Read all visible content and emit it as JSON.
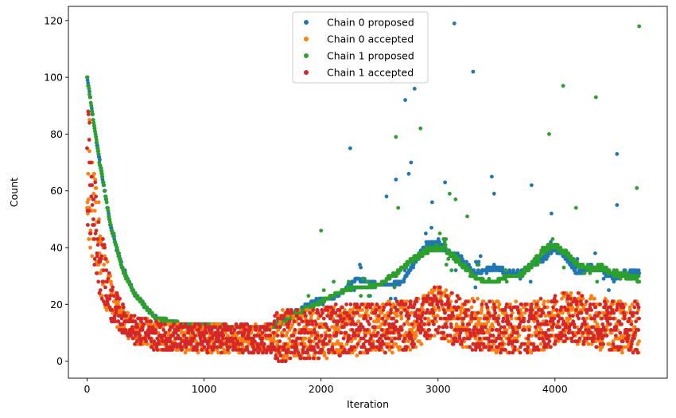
{
  "chart_data": {
    "type": "scatter",
    "title": "",
    "xlabel": "Iteration",
    "ylabel": "Count",
    "xlim": [
      -160,
      4960
    ],
    "ylim": [
      -6,
      125
    ],
    "x_ticks": [
      0,
      1000,
      2000,
      3000,
      4000
    ],
    "x_tick_labels": [
      "0",
      "1000",
      "2000",
      "3000",
      "4000"
    ],
    "y_ticks": [
      0,
      20,
      40,
      60,
      80,
      100,
      120
    ],
    "y_tick_labels": [
      "0",
      "20",
      "40",
      "60",
      "80",
      "100",
      "120"
    ],
    "grid": false,
    "legend_position": "upper center",
    "x_range": [
      0,
      4720
    ],
    "series": [
      {
        "name": "Chain 0 proposed",
        "color": "#1f77b4",
        "approx_trend": {
          "x": [
            0,
            100,
            200,
            300,
            400,
            500,
            600,
            800,
            1000,
            1200,
            1500,
            1600,
            1700,
            1800,
            1900,
            2000,
            2100,
            2200,
            2300,
            2400,
            2500,
            2600,
            2700,
            2800,
            2900,
            3000,
            3100,
            3200,
            3300,
            3400,
            3500,
            3600,
            3700,
            3800,
            3900,
            4000,
            4100,
            4200,
            4300,
            4400,
            4500,
            4600,
            4720
          ],
          "y": [
            100,
            72,
            48,
            33,
            24,
            19,
            15,
            13,
            13,
            12,
            12,
            13,
            15,
            18,
            20,
            22,
            22,
            25,
            29,
            28,
            27,
            27,
            28,
            35,
            41,
            42,
            38,
            36,
            31,
            32,
            33,
            31,
            31,
            34,
            36,
            40,
            36,
            31,
            33,
            32,
            29,
            31,
            31
          ]
        },
        "outliers": [
          [
            2250,
            75
          ],
          [
            2560,
            58
          ],
          [
            2640,
            64
          ],
          [
            2720,
            92
          ],
          [
            2750,
            66
          ],
          [
            2770,
            70
          ],
          [
            2800,
            96
          ],
          [
            2950,
            56
          ],
          [
            3060,
            63
          ],
          [
            3140,
            119
          ],
          [
            3300,
            102
          ],
          [
            3460,
            65
          ],
          [
            3480,
            59
          ],
          [
            3800,
            62
          ],
          [
            3970,
            52
          ],
          [
            4530,
            73
          ],
          [
            4530,
            55
          ]
        ]
      },
      {
        "name": "Chain 0 accepted",
        "color": "#ff7f0e",
        "approx_trend": {
          "x": [
            0,
            100,
            200,
            300,
            400,
            500,
            600,
            800,
            1000,
            1200,
            1500,
            1700,
            2000,
            2200,
            2500,
            2800,
            3000,
            3100,
            3300,
            3500,
            3800,
            4000,
            4100,
            4300,
            4500,
            4720
          ],
          "y": [
            70,
            38,
            22,
            15,
            11,
            10,
            9,
            8,
            8,
            8,
            8,
            9,
            10,
            11,
            12,
            13,
            18,
            15,
            13,
            12,
            12,
            14,
            16,
            14,
            12,
            12
          ]
        },
        "outliers": [
          [
            20,
            74
          ],
          [
            60,
            66
          ],
          [
            100,
            56
          ]
        ]
      },
      {
        "name": "Chain 1 proposed",
        "color": "#2ca02c",
        "approx_trend": {
          "x": [
            0,
            100,
            200,
            300,
            400,
            500,
            600,
            800,
            1000,
            1200,
            1500,
            1600,
            1700,
            1800,
            1900,
            2000,
            2100,
            2200,
            2300,
            2400,
            2500,
            2600,
            2700,
            2800,
            2900,
            3000,
            3100,
            3200,
            3300,
            3400,
            3500,
            3600,
            3700,
            3800,
            3900,
            4000,
            4100,
            4200,
            4300,
            4400,
            4500,
            4600,
            4720
          ],
          "y": [
            100,
            72,
            48,
            33,
            24,
            19,
            15,
            13,
            13,
            12,
            12,
            12,
            14,
            17,
            19,
            21,
            23,
            25,
            26,
            26,
            27,
            30,
            33,
            36,
            39,
            40,
            38,
            34,
            30,
            28,
            28,
            30,
            30,
            34,
            39,
            41,
            38,
            34,
            32,
            33,
            31,
            30,
            29
          ]
        },
        "outliers": [
          [
            2000,
            46
          ],
          [
            2640,
            79
          ],
          [
            2660,
            54
          ],
          [
            2850,
            82
          ],
          [
            3100,
            59
          ],
          [
            3150,
            57
          ],
          [
            3250,
            51
          ],
          [
            3950,
            80
          ],
          [
            4070,
            97
          ],
          [
            4180,
            54
          ],
          [
            4350,
            93
          ],
          [
            4700,
            61
          ],
          [
            4720,
            118
          ]
        ]
      },
      {
        "name": "Chain 1 accepted",
        "color": "#d62728",
        "approx_trend": {
          "x": [
            0,
            100,
            200,
            300,
            400,
            500,
            600,
            800,
            1000,
            1200,
            1500,
            1700,
            2000,
            2200,
            2500,
            2800,
            3000,
            3100,
            3300,
            3500,
            3800,
            4000,
            4100,
            4300,
            4500,
            4720
          ],
          "y": [
            70,
            38,
            22,
            15,
            11,
            10,
            9,
            8,
            8,
            8,
            8,
            9,
            10,
            11,
            12,
            13,
            18,
            15,
            13,
            12,
            12,
            14,
            16,
            14,
            12,
            12
          ]
        },
        "outliers": [
          [
            20,
            70
          ],
          [
            40,
            62
          ],
          [
            60,
            48
          ]
        ]
      }
    ]
  }
}
